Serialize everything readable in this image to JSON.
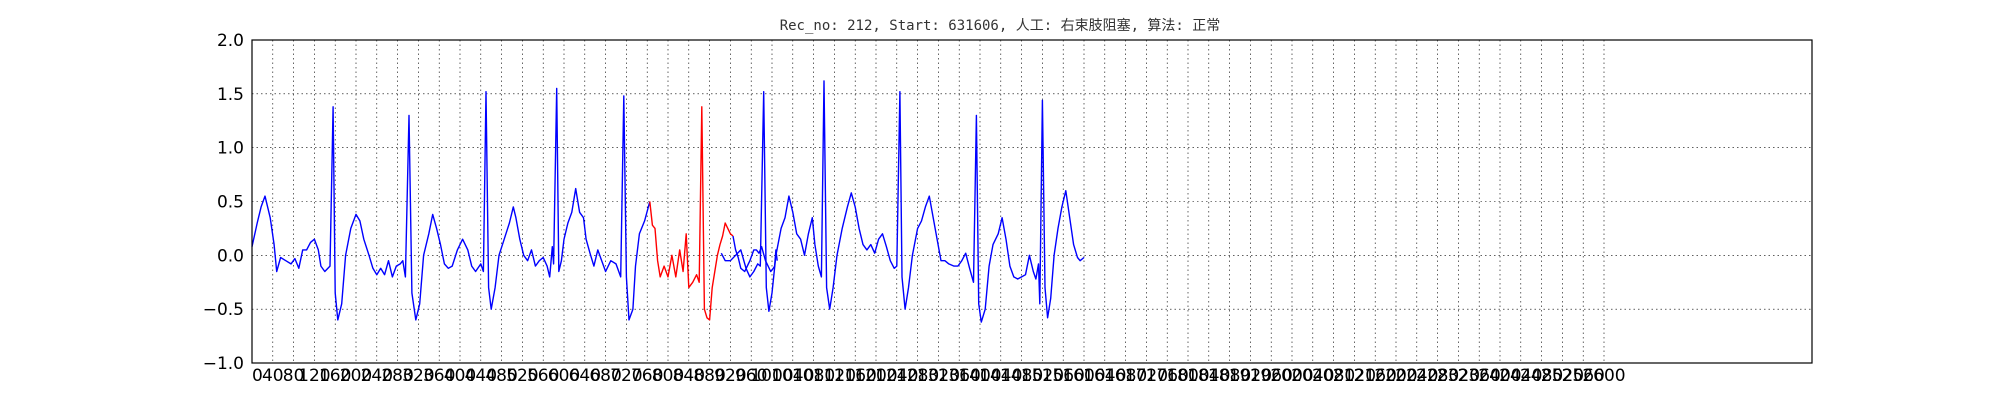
{
  "chart_data": {
    "type": "line",
    "title": "Rec_no: 212, Start: 631606, 人工: 右束肢阻塞, 算法: 正常",
    "xlabel": "",
    "ylabel": "",
    "xlim": [
      0,
      6000
    ],
    "ylim": [
      -1.0,
      2.0
    ],
    "grid": true,
    "y_ticks": [
      "2.0",
      "1.5",
      "1.0",
      "0.5",
      "0.0",
      "−0.5",
      "−1.0"
    ],
    "x_ticks": [
      "0",
      "40",
      "80",
      "120",
      "160",
      "200",
      "240",
      "280",
      "320",
      "360",
      "400",
      "440",
      "480",
      "520",
      "560",
      "600",
      "640",
      "680",
      "720",
      "760",
      "800",
      "840",
      "880",
      "920",
      "960",
      "1000",
      "1040",
      "1080",
      "1120",
      "1160",
      "1200",
      "1240",
      "1280",
      "1320",
      "1360",
      "1400",
      "1440",
      "1480",
      "1520",
      "1560",
      "1600",
      "1640",
      "1680",
      "1720",
      "1760",
      "1800",
      "1840",
      "1880",
      "1920",
      "1960",
      "2000",
      "2040",
      "2080",
      "2120",
      "2160",
      "2200",
      "2240",
      "2280",
      "2320",
      "2360",
      "2400",
      "2440",
      "2480",
      "2520",
      "2560",
      "2600"
    ],
    "series": [
      {
        "color": "#0000ff",
        "segments": [
          [
            [
              0,
              0.08
            ],
            [
              20,
              0.3
            ],
            [
              35,
              0.45
            ],
            [
              50,
              0.55
            ],
            [
              70,
              0.35
            ],
            [
              85,
              0.1
            ],
            [
              95,
              -0.15
            ],
            [
              110,
              -0.02
            ],
            [
              130,
              -0.05
            ],
            [
              150,
              -0.08
            ],
            [
              165,
              -0.03
            ],
            [
              180,
              -0.12
            ],
            [
              195,
              0.05
            ],
            [
              210,
              0.05
            ],
            [
              225,
              0.12
            ],
            [
              240,
              0.15
            ],
            [
              255,
              0.05
            ],
            [
              265,
              -0.1
            ],
            [
              280,
              -0.15
            ],
            [
              300,
              -0.1
            ],
            [
              312,
              1.38
            ],
            [
              320,
              -0.35
            ],
            [
              330,
              -0.6
            ],
            [
              345,
              -0.45
            ],
            [
              360,
              0
            ],
            [
              380,
              0.25
            ],
            [
              400,
              0.38
            ],
            [
              415,
              0.32
            ],
            [
              430,
              0.15
            ],
            [
              450,
              0
            ],
            [
              465,
              -0.12
            ],
            [
              480,
              -0.18
            ],
            [
              495,
              -0.12
            ],
            [
              510,
              -0.18
            ],
            [
              525,
              -0.05
            ],
            [
              540,
              -0.2
            ],
            [
              555,
              -0.1
            ],
            [
              570,
              -0.08
            ],
            [
              580,
              -0.05
            ],
            [
              590,
              -0.2
            ],
            [
              604,
              1.3
            ],
            [
              615,
              -0.35
            ],
            [
              630,
              -0.6
            ],
            [
              645,
              -0.45
            ],
            [
              660,
              0
            ],
            [
              680,
              0.2
            ],
            [
              695,
              0.38
            ],
            [
              710,
              0.25
            ],
            [
              725,
              0.1
            ],
            [
              740,
              -0.08
            ],
            [
              755,
              -0.12
            ],
            [
              770,
              -0.1
            ],
            [
              790,
              0.05
            ],
            [
              810,
              0.15
            ],
            [
              830,
              0.05
            ],
            [
              845,
              -0.1
            ],
            [
              860,
              -0.15
            ],
            [
              880,
              -0.08
            ],
            [
              890,
              -0.15
            ],
            [
              900,
              1.52
            ],
            [
              910,
              -0.3
            ],
            [
              920,
              -0.5
            ],
            [
              935,
              -0.3
            ],
            [
              950,
              0
            ],
            [
              970,
              0.15
            ],
            [
              990,
              0.3
            ],
            [
              1005,
              0.45
            ],
            [
              1015,
              0.35
            ],
            [
              1030,
              0.15
            ],
            [
              1045,
              0
            ],
            [
              1060,
              -0.05
            ],
            [
              1075,
              0.05
            ],
            [
              1090,
              -0.1
            ],
            [
              1105,
              -0.05
            ],
            [
              1120,
              -0.02
            ],
            [
              1135,
              -0.1
            ],
            [
              1145,
              -0.2
            ],
            [
              1155,
              0.08
            ],
            [
              1160,
              -0.08
            ],
            [
              1172,
              1.55
            ],
            [
              1180,
              -0.15
            ],
            [
              1190,
              -0.05
            ],
            [
              1200,
              0.15
            ],
            [
              1215,
              0.3
            ],
            [
              1230,
              0.4
            ],
            [
              1245,
              0.62
            ],
            [
              1260,
              0.4
            ],
            [
              1275,
              0.35
            ],
            [
              1285,
              0.15
            ],
            [
              1300,
              0.02
            ],
            [
              1315,
              -0.1
            ],
            [
              1330,
              0.05
            ],
            [
              1345,
              -0.05
            ],
            [
              1360,
              -0.15
            ],
            [
              1380,
              -0.05
            ],
            [
              1400,
              -0.08
            ],
            [
              1418,
              -0.2
            ],
            [
              1430,
              1.48
            ],
            [
              1440,
              -0.2
            ],
            [
              1450,
              -0.6
            ],
            [
              1465,
              -0.5
            ],
            [
              1475,
              -0.1
            ],
            [
              1490,
              0.2
            ],
            [
              1510,
              0.32
            ],
            [
              1530,
              0.5
            ]
          ],
          [
            [
              1805,
              0.02
            ],
            [
              1820,
              -0.05
            ],
            [
              1840,
              -0.05
            ],
            [
              1860,
              0
            ],
            [
              1880,
              0.05
            ],
            [
              1900,
              -0.12
            ],
            [
              1915,
              -0.2
            ],
            [
              1930,
              -0.15
            ],
            [
              1945,
              -0.08
            ],
            [
              1955,
              -0.1
            ],
            [
              1968,
              1.52
            ],
            [
              1978,
              -0.3
            ],
            [
              1988,
              -0.52
            ],
            [
              2000,
              -0.35
            ],
            [
              2015,
              0
            ],
            [
              2035,
              0.25
            ],
            [
              2050,
              0.35
            ],
            [
              2065,
              0.55
            ],
            [
              2080,
              0.4
            ],
            [
              2095,
              0.2
            ],
            [
              2110,
              0.15
            ],
            [
              2125,
              0
            ],
            [
              2140,
              0.2
            ],
            [
              2155,
              0.35
            ],
            [
              2165,
              0.1
            ],
            [
              2178,
              -0.1
            ],
            [
              2190,
              -0.2
            ],
            [
              2200,
              1.62
            ],
            [
              2210,
              -0.3
            ],
            [
              2222,
              -0.5
            ],
            [
              2235,
              -0.3
            ],
            [
              2250,
              0
            ],
            [
              2270,
              0.25
            ],
            [
              2290,
              0.45
            ],
            [
              2305,
              0.58
            ],
            [
              2320,
              0.45
            ],
            [
              2335,
              0.25
            ],
            [
              2350,
              0.1
            ],
            [
              2365,
              0.05
            ],
            [
              2380,
              0.1
            ],
            [
              2395,
              0.02
            ],
            [
              2410,
              0.15
            ],
            [
              2425,
              0.2
            ],
            [
              2440,
              0.08
            ],
            [
              2455,
              -0.05
            ],
            [
              2470,
              -0.12
            ],
            [
              2480,
              -0.1
            ],
            [
              2492,
              1.52
            ],
            [
              2500,
              -0.2
            ],
            [
              2512,
              -0.5
            ],
            [
              2525,
              -0.3
            ],
            [
              2540,
              0
            ],
            [
              2560,
              0.25
            ],
            [
              2575,
              0.32
            ],
            [
              2590,
              0.45
            ],
            [
              2605,
              0.55
            ],
            [
              2620,
              0.35
            ],
            [
              2635,
              0.15
            ],
            [
              2650,
              -0.05
            ],
            [
              2665,
              -0.05
            ],
            [
              2680,
              -0.08
            ],
            [
              2700,
              -0.1
            ],
            [
              2715,
              -0.1
            ],
            [
              2730,
              -0.05
            ],
            [
              2745,
              0.02
            ],
            [
              2760,
              -0.12
            ],
            [
              2775,
              -0.25
            ],
            [
              2786,
              1.3
            ],
            [
              2795,
              -0.45
            ],
            [
              2805,
              -0.62
            ],
            [
              2820,
              -0.5
            ],
            [
              2835,
              -0.1
            ],
            [
              2850,
              0.1
            ],
            [
              2870,
              0.2
            ],
            [
              2885,
              0.35
            ],
            [
              2900,
              0.15
            ],
            [
              2915,
              -0.1
            ],
            [
              2930,
              -0.2
            ],
            [
              2945,
              -0.22
            ],
            [
              2960,
              -0.2
            ],
            [
              2975,
              -0.18
            ],
            [
              2990,
              0
            ],
            [
              3005,
              -0.15
            ],
            [
              3015,
              -0.22
            ],
            [
              3025,
              -0.08
            ],
            [
              3030,
              -0.45
            ],
            [
              3040,
              1.44
            ],
            [
              3050,
              -0.3
            ],
            [
              3060,
              -0.58
            ],
            [
              3072,
              -0.4
            ],
            [
              3085,
              0
            ],
            [
              3100,
              0.25
            ],
            [
              3115,
              0.45
            ],
            [
              3130,
              0.6
            ],
            [
              3145,
              0.35
            ],
            [
              3160,
              0.1
            ],
            [
              3175,
              -0.02
            ],
            [
              3185,
              -0.05
            ],
            [
              3200,
              -0.02
            ]
          ]
        ]
      },
      {
        "color": "#ff0000",
        "segments": [
          [
            [
              1530,
              0.5
            ],
            [
              1540,
              0.28
            ],
            [
              1550,
              0.25
            ],
            [
              1560,
              -0.05
            ],
            [
              1570,
              -0.2
            ],
            [
              1585,
              -0.1
            ],
            [
              1600,
              -0.2
            ],
            [
              1615,
              0
            ],
            [
              1630,
              -0.2
            ],
            [
              1645,
              0.05
            ],
            [
              1658,
              -0.15
            ],
            [
              1670,
              0.2
            ],
            [
              1680,
              -0.3
            ],
            [
              1695,
              -0.25
            ],
            [
              1710,
              -0.18
            ],
            [
              1720,
              -0.25
            ],
            [
              1730,
              1.38
            ],
            [
              1740,
              -0.5
            ],
            [
              1750,
              -0.58
            ],
            [
              1760,
              -0.6
            ],
            [
              1770,
              -0.3
            ],
            [
              1780,
              -0.15
            ],
            [
              1790,
              0
            ],
            [
              1800,
              0.1
            ],
            [
              1810,
              0.18
            ],
            [
              1820,
              0.3
            ],
            [
              1830,
              0.25
            ],
            [
              1840,
              0.2
            ],
            [
              1850,
              0.18
            ]
          ]
        ]
      },
      {
        "color": "#0000ff",
        "segments": [
          [
            [
              1850,
              0.18
            ],
            [
              1860,
              0.05
            ],
            [
              1870,
              -0.02
            ],
            [
              1880,
              -0.12
            ],
            [
              1895,
              -0.15
            ],
            [
              1905,
              -0.1
            ],
            [
              1915,
              -0.05
            ],
            [
              1930,
              0.05
            ],
            [
              1940,
              0.05
            ],
            [
              1950,
              0.02
            ],
            [
              1960,
              0.08
            ],
            [
              1975,
              -0.05
            ],
            [
              1985,
              -0.1
            ],
            [
              1995,
              -0.15
            ],
            [
              2005,
              -0.12
            ],
            [
              2010,
              -0.1
            ],
            [
              2015,
              0.05
            ],
            [
              2020,
              -0.05
            ]
          ]
        ]
      }
    ]
  }
}
